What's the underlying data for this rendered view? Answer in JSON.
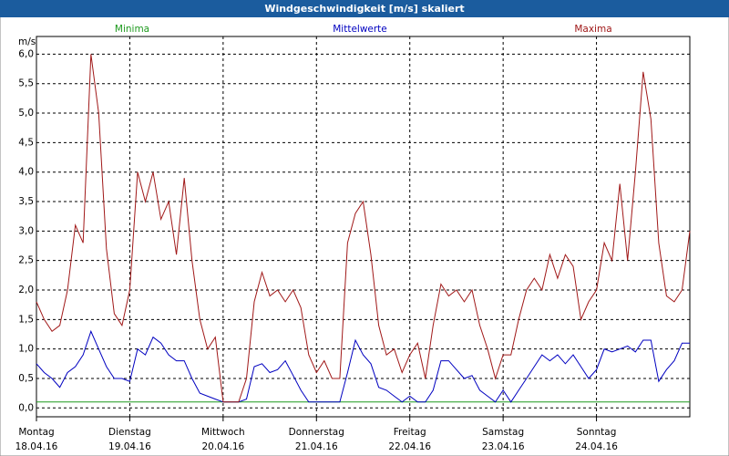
{
  "chart_data": {
    "type": "line",
    "title": "Windgeschwindigkeit [m/s] skaliert",
    "ylabel": "m/s",
    "categories": [
      "18.04.16",
      null,
      null,
      null,
      null,
      null,
      null,
      null,
      null,
      null,
      null,
      null,
      "19.04.16",
      null,
      null,
      null,
      null,
      null,
      null,
      null,
      null,
      null,
      null,
      null,
      "20.04.16",
      null,
      null,
      null,
      null,
      null,
      null,
      null,
      null,
      null,
      null,
      null,
      "21.04.16",
      null,
      null,
      null,
      null,
      null,
      null,
      null,
      null,
      null,
      null,
      null,
      "22.04.16",
      null,
      null,
      null,
      null,
      null,
      null,
      null,
      null,
      null,
      null,
      null,
      "23.04.16",
      null,
      null,
      null,
      null,
      null,
      null,
      null,
      null,
      null,
      null,
      null,
      "24.04.16",
      null,
      null,
      null,
      null,
      null,
      null,
      null,
      null,
      null,
      null,
      null,
      null
    ],
    "weekdays": [
      "Montag",
      null,
      null,
      null,
      null,
      null,
      null,
      null,
      null,
      null,
      null,
      null,
      "Dienstag",
      null,
      null,
      null,
      null,
      null,
      null,
      null,
      null,
      null,
      null,
      null,
      "Mittwoch",
      null,
      null,
      null,
      null,
      null,
      null,
      null,
      null,
      null,
      null,
      null,
      "Donnerstag",
      null,
      null,
      null,
      null,
      null,
      null,
      null,
      null,
      null,
      null,
      null,
      "Freitag",
      null,
      null,
      null,
      null,
      null,
      null,
      null,
      null,
      null,
      null,
      null,
      "Samstag",
      null,
      null,
      null,
      null,
      null,
      null,
      null,
      null,
      null,
      null,
      null,
      "Sonntag",
      null,
      null,
      null,
      null,
      null,
      null,
      null,
      null,
      null,
      null,
      null,
      null
    ],
    "series": [
      {
        "name": "Minima",
        "color": "#1f9a1f",
        "values": [
          0.1,
          0.1,
          0.1,
          0.1,
          0.1,
          0.1,
          0.1,
          0.1,
          0.1,
          0.1,
          0.1,
          0.1,
          0.1,
          0.1,
          0.1,
          0.1,
          0.1,
          0.1,
          0.1,
          0.1,
          0.1,
          0.1,
          0.1,
          0.1,
          0.1,
          0.1,
          0.1,
          0.1,
          0.1,
          0.1,
          0.1,
          0.1,
          0.1,
          0.1,
          0.1,
          0.1,
          0.1,
          0.1,
          0.1,
          0.1,
          0.1,
          0.1,
          0.1,
          0.1,
          0.1,
          0.1,
          0.1,
          0.1,
          0.1,
          0.1,
          0.1,
          0.1,
          0.1,
          0.1,
          0.1,
          0.1,
          0.1,
          0.1,
          0.1,
          0.1,
          0.1,
          0.1,
          0.1,
          0.1,
          0.1,
          0.1,
          0.1,
          0.1,
          0.1,
          0.1,
          0.1,
          0.1,
          0.1,
          0.1,
          0.1,
          0.1,
          0.1,
          0.1,
          0.1,
          0.1,
          0.1,
          0.1,
          0.1,
          0.1,
          0.1
        ]
      },
      {
        "name": "Mittelwerte",
        "color": "#0000c0",
        "values": [
          0.75,
          0.6,
          0.5,
          0.35,
          0.6,
          0.7,
          0.9,
          1.3,
          1.0,
          0.7,
          0.5,
          0.5,
          0.45,
          1.0,
          0.9,
          1.2,
          1.1,
          0.9,
          0.8,
          0.8,
          0.5,
          0.25,
          0.2,
          0.15,
          0.1,
          0.1,
          0.1,
          0.15,
          0.7,
          0.75,
          0.6,
          0.65,
          0.8,
          0.55,
          0.3,
          0.1,
          0.1,
          0.1,
          0.1,
          0.1,
          0.6,
          1.15,
          0.9,
          0.75,
          0.35,
          0.3,
          0.2,
          0.1,
          0.2,
          0.1,
          0.1,
          0.3,
          0.8,
          0.8,
          0.65,
          0.5,
          0.55,
          0.3,
          0.2,
          0.1,
          0.3,
          0.1,
          0.3,
          0.5,
          0.7,
          0.9,
          0.8,
          0.9,
          0.75,
          0.9,
          0.7,
          0.5,
          0.65,
          1.0,
          0.95,
          1.0,
          1.05,
          0.95,
          1.15,
          1.15,
          0.45,
          0.65,
          0.8,
          1.1,
          1.1
        ]
      },
      {
        "name": "Maxima",
        "color": "#a01818",
        "values": [
          1.8,
          1.5,
          1.3,
          1.4,
          2.0,
          3.1,
          2.8,
          6.0,
          5.0,
          2.7,
          1.6,
          1.4,
          2.0,
          4.0,
          3.5,
          4.0,
          3.2,
          3.5,
          2.6,
          3.9,
          2.5,
          1.5,
          1.0,
          1.2,
          0.1,
          0.1,
          0.1,
          0.5,
          1.8,
          2.3,
          1.9,
          2.0,
          1.8,
          2.0,
          1.7,
          0.9,
          0.6,
          0.8,
          0.5,
          0.5,
          2.8,
          3.3,
          3.5,
          2.6,
          1.4,
          0.9,
          1.0,
          0.6,
          0.9,
          1.1,
          0.5,
          1.4,
          2.1,
          1.9,
          2.0,
          1.8,
          2.0,
          1.4,
          1.0,
          0.5,
          0.9,
          0.9,
          1.5,
          2.0,
          2.2,
          2.0,
          2.6,
          2.2,
          2.6,
          2.4,
          1.5,
          1.8,
          2.0,
          2.8,
          2.5,
          3.8,
          2.5,
          4.0,
          5.7,
          4.9,
          2.8,
          1.9,
          1.8,
          2.0,
          3.0
        ]
      }
    ],
    "ylim": [
      -0.15,
      6.3
    ],
    "yticks": [
      {
        "value": 0,
        "label": "0,0"
      },
      {
        "value": 0.5,
        "label": "0,5"
      },
      {
        "value": 1,
        "label": "1,0"
      },
      {
        "value": 1.5,
        "label": "1,5"
      },
      {
        "value": 2,
        "label": "2,0"
      },
      {
        "value": 2.5,
        "label": "2,5"
      },
      {
        "value": 3,
        "label": "3,0"
      },
      {
        "value": 3.5,
        "label": "3,5"
      },
      {
        "value": 4,
        "label": "4,0"
      },
      {
        "value": 4.5,
        "label": "4,5"
      },
      {
        "value": 5,
        "label": "5,0"
      },
      {
        "value": 5.5,
        "label": "5,5"
      },
      {
        "value": 6,
        "label": "6,0"
      }
    ],
    "grid": true
  }
}
